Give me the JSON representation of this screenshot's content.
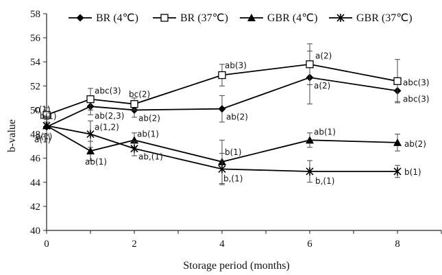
{
  "chart_data": {
    "type": "line",
    "xlabel": "Storage period (months)",
    "ylabel": "b-value",
    "xlim": [
      0,
      9
    ],
    "ylim": [
      40,
      58
    ],
    "xticks": [
      0,
      2,
      4,
      6,
      8
    ],
    "yticks": [
      40,
      42,
      44,
      46,
      48,
      50,
      52,
      54,
      56,
      58
    ],
    "grid": false,
    "legend_position": "top",
    "x": [
      0,
      1,
      2,
      4,
      6,
      8
    ],
    "series": [
      {
        "name": "BR (4℃)",
        "marker": "diamond",
        "values": [
          48.6,
          50.3,
          50.0,
          50.1,
          52.7,
          51.6
        ],
        "errors": [
          0.6,
          0.7,
          0.6,
          1.1,
          2.2,
          0.9
        ],
        "labels": [
          "a(1)",
          "ab(2,3)",
          "ab(2)",
          "ab(2)",
          "a(2)",
          "abc(3)"
        ]
      },
      {
        "name": "BR (37℃)",
        "marker": "square",
        "values": [
          49.6,
          50.9,
          50.5,
          52.9,
          53.8,
          52.4
        ],
        "errors": [
          0.6,
          0.9,
          0.5,
          0.9,
          1.7,
          1.8
        ],
        "labels": [
          "c(1)",
          "abc(3)",
          "bc(2)",
          "ab(3)",
          "a(2)",
          "abc(3)"
        ]
      },
      {
        "name": "GBR (4℃)",
        "marker": "triangle",
        "values": [
          48.7,
          46.6,
          47.5,
          45.7,
          47.5,
          47.3
        ],
        "errors": [
          0.8,
          0.8,
          0.6,
          1.8,
          0.6,
          0.7
        ],
        "labels": [
          "a(1)",
          "ab(1)",
          "ab(1)",
          "b(1)",
          "ab(1)",
          "ab(2)"
        ]
      },
      {
        "name": "GBR (37℃)",
        "marker": "star",
        "values": [
          48.7,
          48.0,
          46.8,
          45.1,
          44.9,
          44.9
        ],
        "errors": [
          0.7,
          1.1,
          0.6,
          1.3,
          0.9,
          0.5
        ],
        "labels": [
          "b(1)",
          "a(1,2)",
          "ab,(1)",
          "b,(1)",
          "b,(1)",
          "b(1)"
        ]
      }
    ]
  }
}
